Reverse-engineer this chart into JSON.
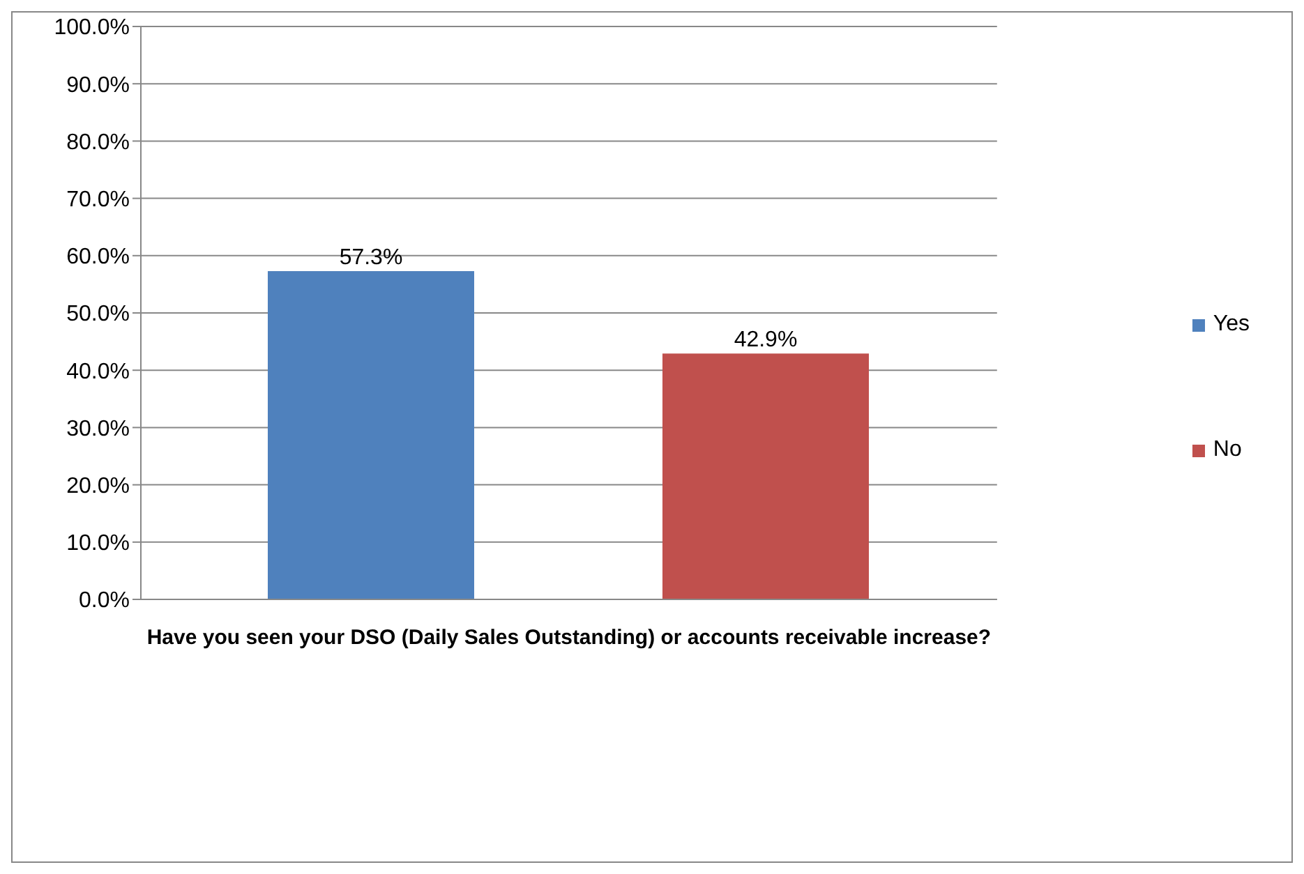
{
  "chart_data": {
    "type": "bar",
    "xlabel": "Have you seen your DSO (Daily Sales Outstanding) or accounts receivable increase?",
    "categories": [
      null
    ],
    "series": [
      {
        "name": "Yes",
        "color": "#4f81bd",
        "values": [
          57.3
        ],
        "value_labels": [
          "57.3%"
        ]
      },
      {
        "name": "No",
        "color": "#c0504d",
        "values": [
          42.9
        ],
        "value_labels": [
          "42.9%"
        ]
      }
    ],
    "ylim": [
      0,
      100
    ],
    "yticks": [
      {
        "value": 0,
        "label": "0.0%"
      },
      {
        "value": 10,
        "label": "10.0%"
      },
      {
        "value": 20,
        "label": "20.0%"
      },
      {
        "value": 30,
        "label": "30.0%"
      },
      {
        "value": 40,
        "label": "40.0%"
      },
      {
        "value": 50,
        "label": "50.0%"
      },
      {
        "value": 60,
        "label": "60.0%"
      },
      {
        "value": 70,
        "label": "70.0%"
      },
      {
        "value": 80,
        "label": "80.0%"
      },
      {
        "value": 90,
        "label": "90.0%"
      },
      {
        "value": 100,
        "label": "100.0%"
      }
    ],
    "grid": "y",
    "legend": "right"
  }
}
